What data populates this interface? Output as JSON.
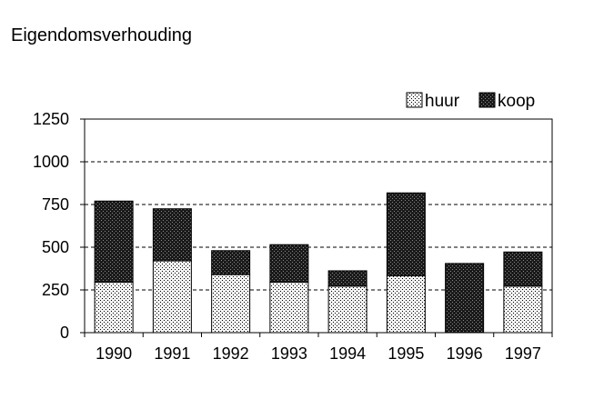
{
  "chart_data": {
    "type": "bar",
    "stacked": true,
    "title": "Eigendomsverhouding",
    "xlabel": "",
    "ylabel": "",
    "categories": [
      "1990",
      "1991",
      "1992",
      "1993",
      "1994",
      "1995",
      "1996",
      "1997"
    ],
    "series": [
      {
        "name": "huur",
        "values": [
          295,
          420,
          340,
          295,
          272,
          333,
          0,
          272
        ],
        "pattern": "dotted"
      },
      {
        "name": "koop",
        "values": [
          475,
          305,
          140,
          220,
          90,
          485,
          405,
          200
        ],
        "pattern": "dark-speckled"
      }
    ],
    "ylim": [
      0,
      1250
    ],
    "yticks": [
      0,
      250,
      500,
      750,
      1000,
      1250
    ],
    "grid": "dashed horizontal",
    "legend_position": "top-right",
    "colors": {
      "huur_fill": "#f2f2f2",
      "koop_fill": "#202020",
      "axis": "#000000"
    }
  }
}
